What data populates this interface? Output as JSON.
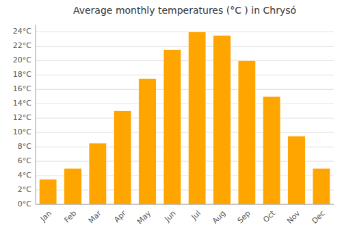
{
  "chart_data": {
    "type": "bar",
    "title": "Average monthly temperatures (°C ) in Chrysó",
    "categories": [
      "Jan",
      "Feb",
      "Mar",
      "Apr",
      "May",
      "Jun",
      "Jul",
      "Aug",
      "Sep",
      "Oct",
      "Nov",
      "Dec"
    ],
    "values": [
      3.5,
      5.0,
      8.5,
      13.0,
      17.5,
      21.5,
      24.0,
      23.5,
      20.0,
      15.0,
      9.5,
      5.0
    ],
    "color": "#FFA500",
    "ylim": [
      0,
      25
    ],
    "yticks": [
      {
        "value": 0,
        "label": "0°C"
      },
      {
        "value": 2,
        "label": "2°C"
      },
      {
        "value": 4,
        "label": "4°C"
      },
      {
        "value": 6,
        "label": "6°C"
      },
      {
        "value": 8,
        "label": "8°C"
      },
      {
        "value": 10,
        "label": "10°C"
      },
      {
        "value": 12,
        "label": "12°C"
      },
      {
        "value": 14,
        "label": "14°C"
      },
      {
        "value": 16,
        "label": "16°C"
      },
      {
        "value": 18,
        "label": "18°C"
      },
      {
        "value": 20,
        "label": "20°C"
      },
      {
        "value": 22,
        "label": "22°C"
      },
      {
        "value": 24,
        "label": "24°C"
      }
    ],
    "grid": true
  }
}
